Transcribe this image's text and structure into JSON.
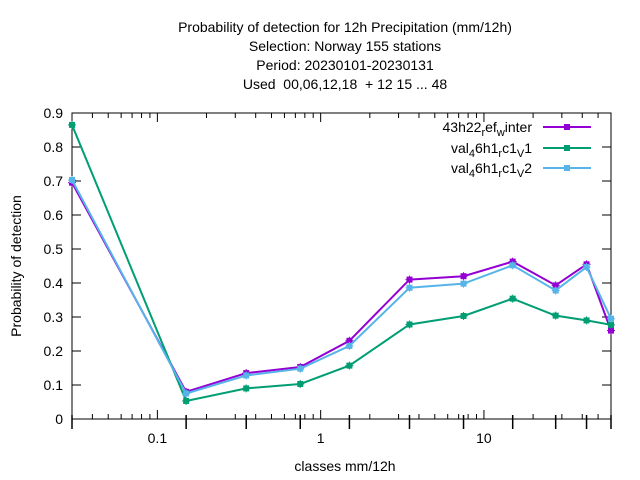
{
  "chart_data": {
    "type": "line",
    "title_lines": [
      "Probability of detection  for 12h Precipitation (mm/12h)",
      "Selection: Norway    155 stations",
      "Period: 20230101-20230131",
      "Used  00,06,12,18  + 12 15 ... 48"
    ],
    "xlabel": "classes mm/12h",
    "ylabel": "Probability of detection",
    "x_scale": "log",
    "xlim": [
      0.03,
      60
    ],
    "ylim": [
      0,
      0.9
    ],
    "x_tick_labels": [
      {
        "value": 0.1,
        "label": "0.1"
      },
      {
        "value": 1,
        "label": "1"
      },
      {
        "value": 10,
        "label": "10"
      }
    ],
    "y_ticks": [
      0,
      0.1,
      0.2,
      0.3,
      0.4,
      0.5,
      0.6,
      0.7,
      0.8,
      0.9
    ],
    "y_tick_labels": [
      "0",
      "0.1",
      "0.2",
      "0.3",
      "0.4",
      "0.5",
      "0.6",
      "0.7",
      "0.8",
      "0.9"
    ],
    "grid": false,
    "legend_position": "top-right",
    "x": [
      0.03,
      0.15,
      0.35,
      0.75,
      1.5,
      3.5,
      7.5,
      15,
      27.5,
      42.5,
      60
    ],
    "series": [
      {
        "name_parts": {
          "a": "43h22",
          "s1": "r",
          "b": "ef",
          "s2": "w",
          "c": "inter"
        },
        "color": "#9400d3",
        "values": [
          0.695,
          0.08,
          0.135,
          0.153,
          0.23,
          0.41,
          0.42,
          0.463,
          0.393,
          0.455,
          0.26
        ]
      },
      {
        "name_parts": {
          "a": "val",
          "s1": "4",
          "b": "6h1",
          "s2": "r",
          "c": "c1",
          "s3": "V",
          "d": "1"
        },
        "color": "#009e73",
        "values": [
          0.865,
          0.053,
          0.09,
          0.103,
          0.157,
          0.278,
          0.303,
          0.354,
          0.304,
          0.29,
          0.277
        ]
      },
      {
        "name_parts": {
          "a": "val",
          "s1": "4",
          "b": "6h1",
          "s2": "r",
          "c": "c1",
          "s3": "V",
          "d": "2"
        },
        "color": "#56b4e9",
        "values": [
          0.703,
          0.075,
          0.128,
          0.148,
          0.215,
          0.386,
          0.398,
          0.452,
          0.378,
          0.447,
          0.295
        ]
      }
    ]
  }
}
